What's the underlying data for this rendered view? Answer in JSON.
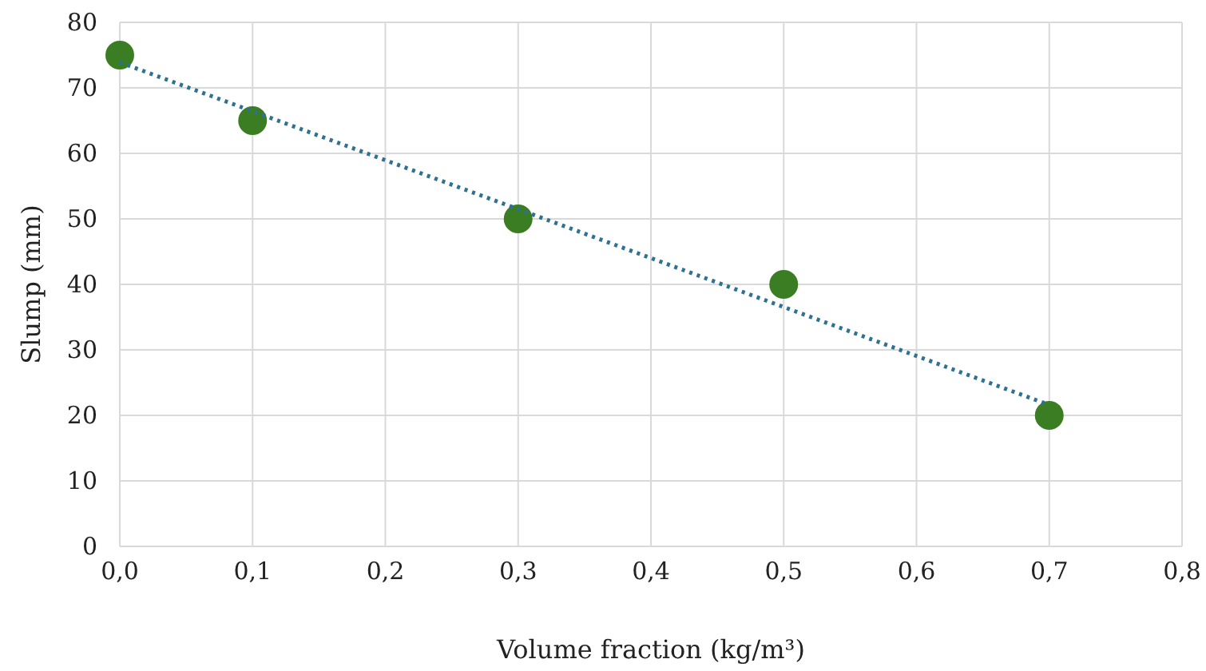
{
  "chart_data": {
    "type": "scatter",
    "xlabel": "Volume fraction (kg/m³)",
    "ylabel": "Slump (mm)",
    "xlim": [
      0,
      0.8
    ],
    "xticks": [
      {
        "value": 0,
        "label": "0,0"
      },
      {
        "value": 0.1,
        "label": "0,1"
      },
      {
        "value": 0.2,
        "label": "0,2"
      },
      {
        "value": 0.3,
        "label": "0,3"
      },
      {
        "value": 0.4,
        "label": "0,4"
      },
      {
        "value": 0.5,
        "label": "0,5"
      },
      {
        "value": 0.6,
        "label": "0,6"
      },
      {
        "value": 0.7,
        "label": "0,7"
      },
      {
        "value": 0.8,
        "label": "0,8"
      }
    ],
    "ylim": [
      0,
      80
    ],
    "yticks": [
      0,
      10,
      20,
      30,
      40,
      50,
      60,
      70,
      80
    ],
    "grid": true,
    "series": [
      {
        "color": "#3b7d23",
        "marker": "circle",
        "x": [
          0,
          0.1,
          0.3,
          0.5,
          0.7
        ],
        "values": [
          75,
          65,
          50,
          40,
          20
        ]
      },
      {
        "type": "line",
        "color": "#2e7191",
        "line_style": "dotted",
        "marker": "none",
        "x": [
          0,
          0.7
        ],
        "values": [
          73.9,
          21.6
        ]
      }
    ]
  }
}
